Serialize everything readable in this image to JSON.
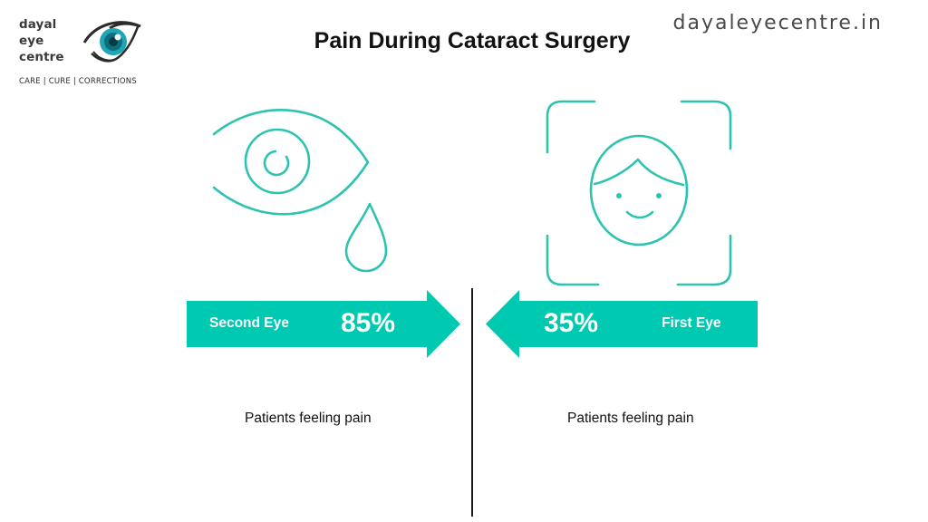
{
  "brand": {
    "name_lines": [
      "dayal",
      "eye",
      "centre"
    ],
    "tagline": "CARE | CURE | CORRECTIONS"
  },
  "site_url": "dayaleyecentre.in",
  "title": "Pain During Cataract Surgery",
  "colors": {
    "accent": "#00C9B1",
    "line": "#2CC3B0",
    "text": "#111111",
    "divider": "#1A1A1A"
  },
  "panels": {
    "left": {
      "icon": "eye-with-tear-icon",
      "label": "Second Eye",
      "value": "85%",
      "caption": "Patients feeling pain"
    },
    "right": {
      "icon": "smiling-face-scan-icon",
      "label": "First Eye",
      "value": "35%",
      "caption": "Patients feeling pain"
    }
  }
}
